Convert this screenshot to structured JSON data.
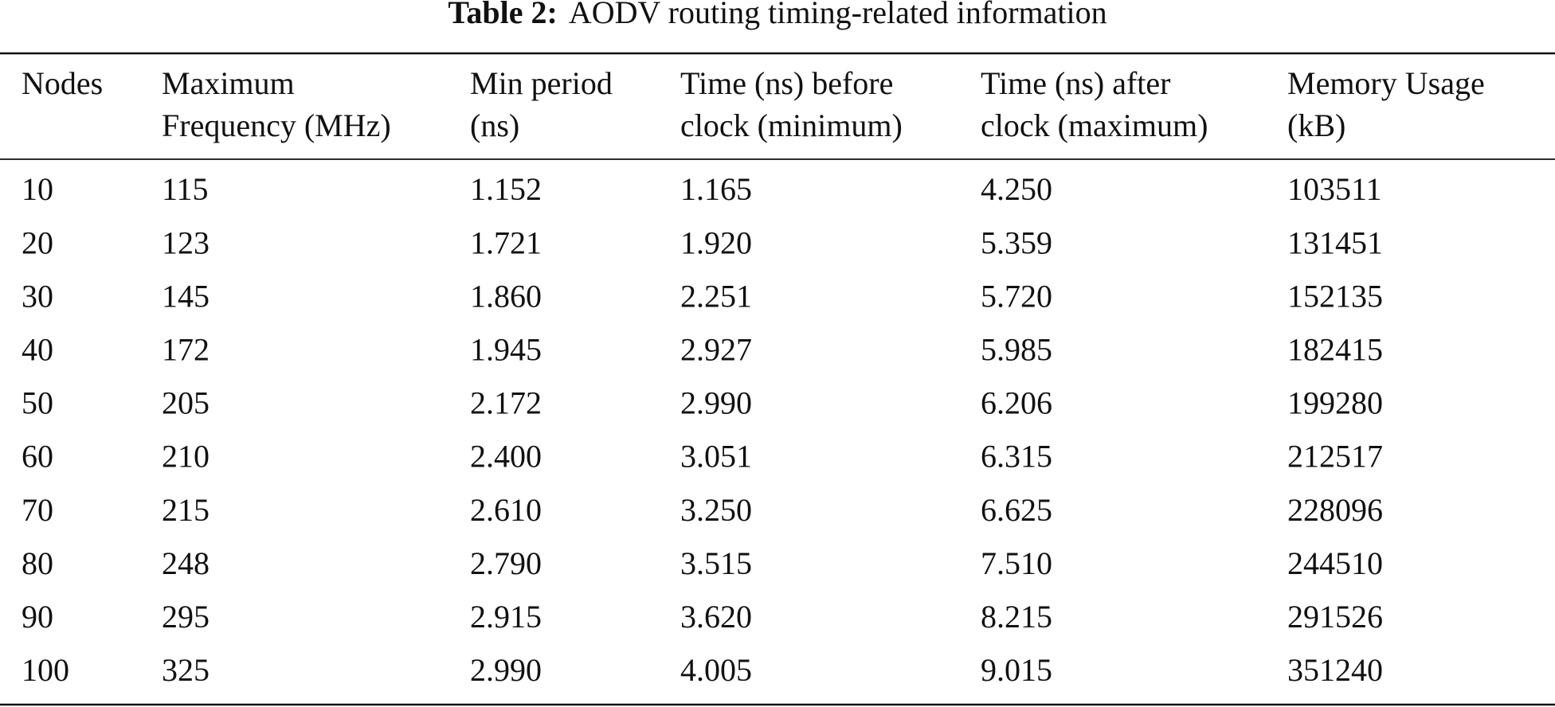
{
  "table": {
    "caption": {
      "label": "Table 2:",
      "text": "AODV routing timing-related information"
    },
    "header": [
      [
        "Nodes"
      ],
      [
        "Maximum",
        "Frequency (MHz)"
      ],
      [
        "Min period",
        "(ns)"
      ],
      [
        "Time (ns) before",
        "clock (minimum)"
      ],
      [
        "Time (ns) after",
        "clock (maximum)"
      ],
      [
        "Memory Usage",
        "(kB)"
      ]
    ],
    "rows": [
      [
        "10",
        "115",
        "1.152",
        "1.165",
        "4.250",
        "103511"
      ],
      [
        "20",
        "123",
        "1.721",
        "1.920",
        "5.359",
        "131451"
      ],
      [
        "30",
        "145",
        "1.860",
        "2.251",
        "5.720",
        "152135"
      ],
      [
        "40",
        "172",
        "1.945",
        "2.927",
        "5.985",
        "182415"
      ],
      [
        "50",
        "205",
        "2.172",
        "2.990",
        "6.206",
        "199280"
      ],
      [
        "60",
        "210",
        "2.400",
        "3.051",
        "6.315",
        "212517"
      ],
      [
        "70",
        "215",
        "2.610",
        "3.250",
        "6.625",
        "228096"
      ],
      [
        "80",
        "248",
        "2.790",
        "3.515",
        "7.510",
        "244510"
      ],
      [
        "90",
        "295",
        "2.915",
        "3.620",
        "8.215",
        "291526"
      ],
      [
        "100",
        "325",
        "2.990",
        "4.005",
        "9.015",
        "351240"
      ]
    ]
  }
}
